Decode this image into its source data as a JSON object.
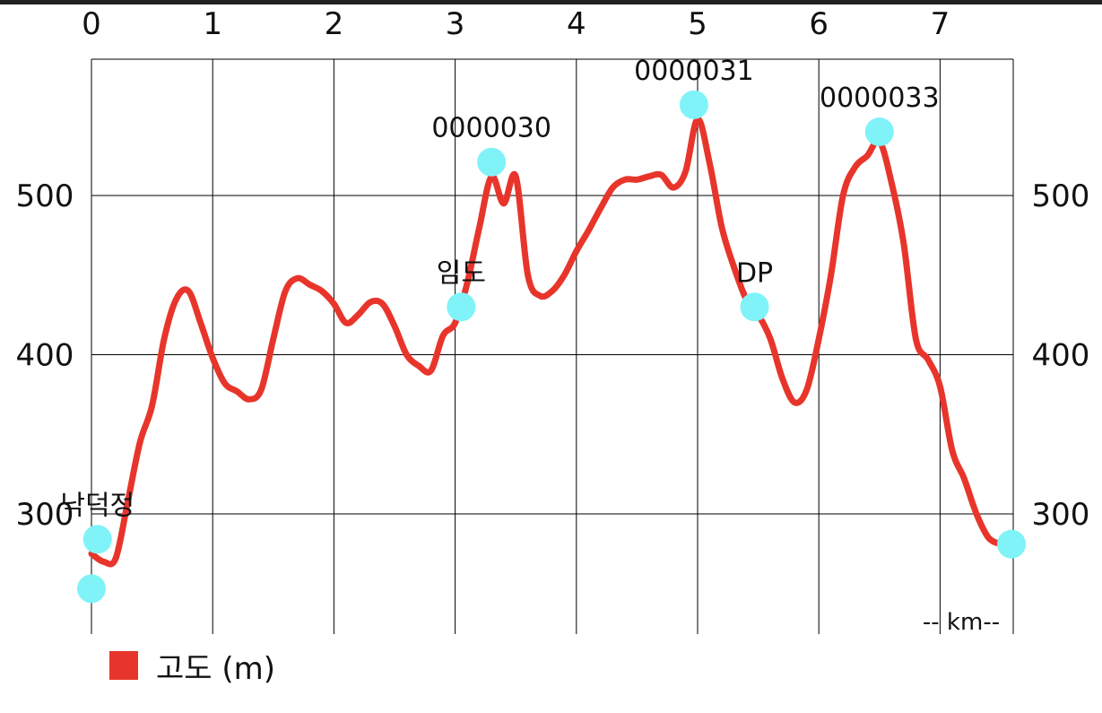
{
  "chart_data": {
    "type": "line",
    "title": "",
    "xlabel": "-- km--",
    "ylabel": "",
    "xlim": [
      0,
      7.6
    ],
    "ylim": [
      228,
      590
    ],
    "x_ticks": [
      "0",
      "1",
      "2",
      "3",
      "4",
      "5",
      "6",
      "7"
    ],
    "y_ticks": [
      "300",
      "400",
      "500"
    ],
    "grid": true,
    "legend_position": "bottom-left",
    "series": [
      {
        "name": "고도 (m)",
        "color": "#e8352b",
        "points": [
          [
            0.0,
            275
          ],
          [
            0.1,
            270
          ],
          [
            0.2,
            272
          ],
          [
            0.3,
            308
          ],
          [
            0.4,
            345
          ],
          [
            0.5,
            368
          ],
          [
            0.6,
            410
          ],
          [
            0.7,
            435
          ],
          [
            0.8,
            440
          ],
          [
            0.9,
            420
          ],
          [
            1.0,
            398
          ],
          [
            1.1,
            382
          ],
          [
            1.2,
            377
          ],
          [
            1.3,
            372
          ],
          [
            1.4,
            378
          ],
          [
            1.5,
            410
          ],
          [
            1.6,
            440
          ],
          [
            1.7,
            448
          ],
          [
            1.8,
            444
          ],
          [
            1.9,
            440
          ],
          [
            2.0,
            432
          ],
          [
            2.1,
            420
          ],
          [
            2.2,
            425
          ],
          [
            2.3,
            433
          ],
          [
            2.4,
            432
          ],
          [
            2.5,
            418
          ],
          [
            2.6,
            400
          ],
          [
            2.7,
            393
          ],
          [
            2.8,
            390
          ],
          [
            2.9,
            412
          ],
          [
            3.0,
            420
          ],
          [
            3.1,
            445
          ],
          [
            3.2,
            480
          ],
          [
            3.3,
            512
          ],
          [
            3.4,
            495
          ],
          [
            3.5,
            512
          ],
          [
            3.6,
            450
          ],
          [
            3.7,
            437
          ],
          [
            3.8,
            440
          ],
          [
            3.9,
            450
          ],
          [
            4.0,
            465
          ],
          [
            4.1,
            478
          ],
          [
            4.2,
            492
          ],
          [
            4.3,
            505
          ],
          [
            4.4,
            510
          ],
          [
            4.5,
            510
          ],
          [
            4.6,
            512
          ],
          [
            4.7,
            513
          ],
          [
            4.8,
            505
          ],
          [
            4.9,
            515
          ],
          [
            5.0,
            548
          ],
          [
            5.1,
            520
          ],
          [
            5.2,
            480
          ],
          [
            5.3,
            455
          ],
          [
            5.4,
            435
          ],
          [
            5.5,
            425
          ],
          [
            5.6,
            410
          ],
          [
            5.7,
            385
          ],
          [
            5.8,
            370
          ],
          [
            5.9,
            378
          ],
          [
            6.0,
            410
          ],
          [
            6.1,
            450
          ],
          [
            6.2,
            500
          ],
          [
            6.3,
            518
          ],
          [
            6.4,
            525
          ],
          [
            6.5,
            534
          ],
          [
            6.6,
            508
          ],
          [
            6.7,
            470
          ],
          [
            6.8,
            410
          ],
          [
            6.9,
            397
          ],
          [
            7.0,
            380
          ],
          [
            7.1,
            340
          ],
          [
            7.2,
            322
          ],
          [
            7.3,
            300
          ],
          [
            7.4,
            285
          ],
          [
            7.5,
            281
          ]
        ]
      }
    ],
    "waypoints": [
      {
        "label": "",
        "x": 0.0,
        "y": 253
      },
      {
        "label": "낙덕정",
        "x": 0.05,
        "y": 284
      },
      {
        "label": "임도",
        "x": 3.05,
        "y": 430
      },
      {
        "label": "0000030",
        "x": 3.3,
        "y": 521
      },
      {
        "label": "0000031",
        "x": 4.97,
        "y": 557
      },
      {
        "label": "DP",
        "x": 5.47,
        "y": 430
      },
      {
        "label": "0000033",
        "x": 6.5,
        "y": 540
      },
      {
        "label": "",
        "x": 7.6,
        "y": 281
      }
    ],
    "colors": {
      "line": "#e8352b",
      "waypoint": "#7ff3f7",
      "grid": "#000000"
    }
  },
  "legend": {
    "label": "고도 (m)",
    "color": "#e8352b"
  }
}
